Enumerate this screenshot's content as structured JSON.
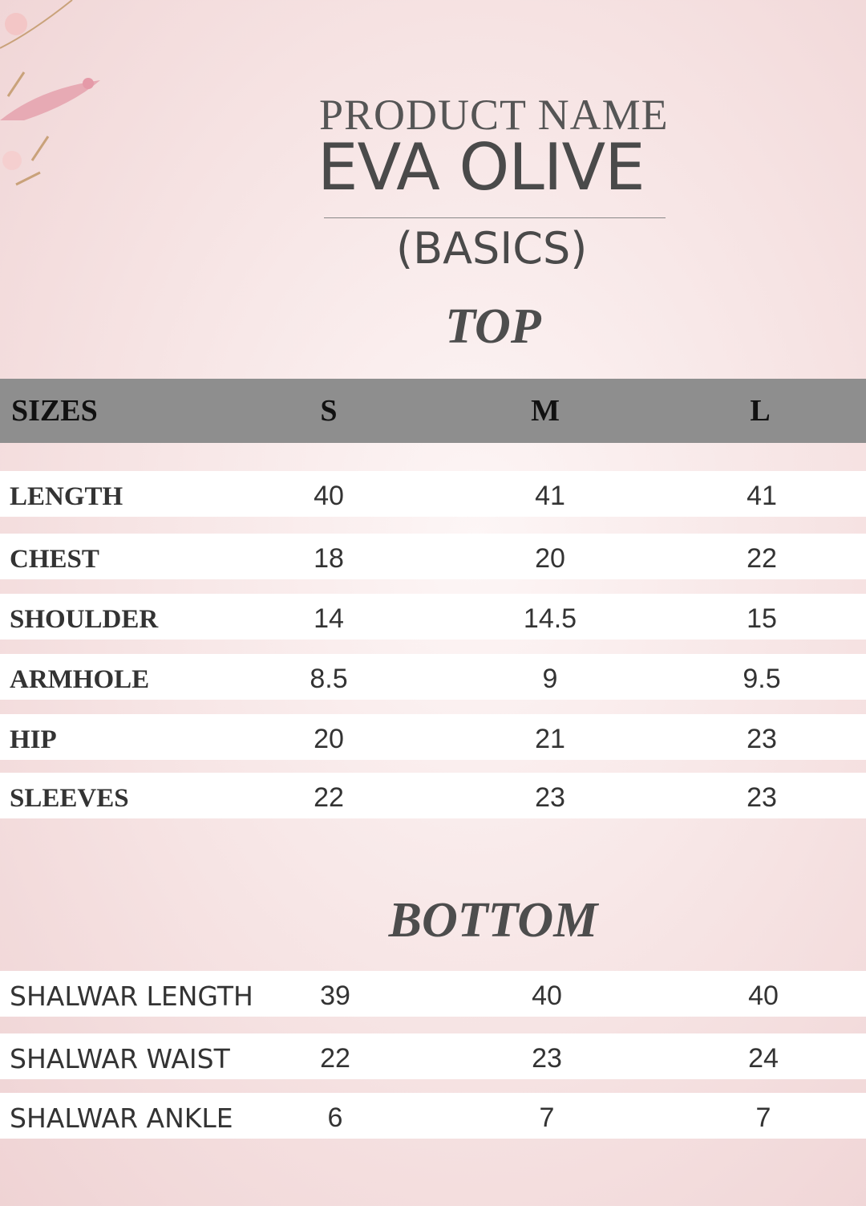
{
  "header": {
    "line1": "PRODUCT NAME",
    "line2": "EVA OLIVE",
    "line3": "(BASICS)"
  },
  "top": {
    "title": "TOP",
    "columns": [
      "SIZES",
      "S",
      "M",
      "L"
    ],
    "rows": [
      {
        "label": "LENGTH",
        "s": "40",
        "m": "41",
        "l": "41"
      },
      {
        "label": "CHEST",
        "s": "18",
        "m": "20",
        "l": "22"
      },
      {
        "label": "SHOULDER",
        "s": "14",
        "m": "14.5",
        "l": "15"
      },
      {
        "label": "ARMHOLE",
        "s": "8.5",
        "m": "9",
        "l": "9.5"
      },
      {
        "label": "HIP",
        "s": "20",
        "m": "21",
        "l": "23"
      },
      {
        "label": "SLEEVES",
        "s": "22",
        "m": "23",
        "l": "23"
      }
    ]
  },
  "bottom": {
    "title": "BOTTOM",
    "rows": [
      {
        "label": "SHALWAR LENGTH",
        "s": "39",
        "m": "40",
        "l": "40"
      },
      {
        "label": "SHALWAR WAIST",
        "s": "22",
        "m": "23",
        "l": "24"
      },
      {
        "label": "SHALWAR ANKLE",
        "s": "6",
        "m": "7",
        "l": "7"
      }
    ]
  },
  "colors": {
    "header_bar": "#8e8e8e",
    "background": "#f6e3e3",
    "row": "#ffffff"
  }
}
